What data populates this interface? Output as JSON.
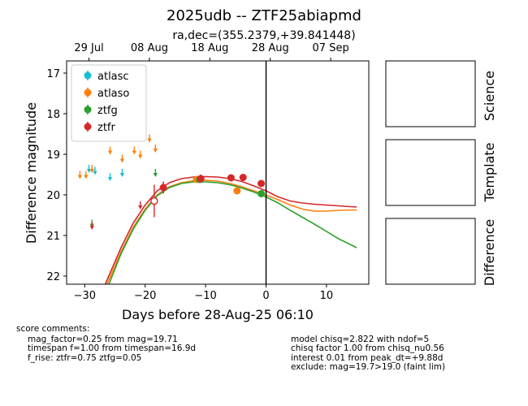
{
  "title": "2025udb -- ZTF25abiapmd",
  "subtitle": "ra,dec=(355.2379,+39.841448)",
  "chart_data": {
    "type": "scatter",
    "xlabel": "Days before 28-Aug-25 06:10",
    "ylabel": "Difference magnitude",
    "xlim": [
      -33,
      17
    ],
    "ylim": [
      22.2,
      16.7
    ],
    "y_inverted": true,
    "xticks": [
      -30,
      -20,
      -10,
      0,
      10
    ],
    "yticks": [
      17,
      18,
      19,
      20,
      21,
      22
    ],
    "top_axis_ticks": [
      {
        "label": "29 Jul",
        "x": -29.3
      },
      {
        "label": "08 Aug",
        "x": -19.3
      },
      {
        "label": "18 Aug",
        "x": -9.3
      },
      {
        "label": "28 Aug",
        "x": 0.7
      },
      {
        "label": "07 Sep",
        "x": 10.7
      }
    ],
    "vline_x": 0,
    "legend_position": "top-left",
    "series": [
      {
        "name": "atlasc",
        "color": "#17becf",
        "detections": [],
        "upper_limits": [
          {
            "x": -29.3,
            "y": 19.3
          },
          {
            "x": -28.3,
            "y": 19.35
          },
          {
            "x": -25.8,
            "y": 19.5
          },
          {
            "x": -23.8,
            "y": 19.4
          }
        ]
      },
      {
        "name": "atlaso",
        "color": "#ff7f0e",
        "detections": [
          {
            "x": -11.5,
            "y": 19.62,
            "err": 0.06
          },
          {
            "x": -4.8,
            "y": 19.9,
            "err": 0.08
          }
        ],
        "upper_limits": [
          {
            "x": -30.8,
            "y": 19.45
          },
          {
            "x": -29.8,
            "y": 19.45
          },
          {
            "x": -28.8,
            "y": 19.3
          },
          {
            "x": -25.8,
            "y": 18.85
          },
          {
            "x": -23.8,
            "y": 19.05
          },
          {
            "x": -21.8,
            "y": 18.85
          },
          {
            "x": -20.8,
            "y": 18.95
          },
          {
            "x": -19.3,
            "y": 18.55
          },
          {
            "x": -18.3,
            "y": 18.8
          }
        ]
      },
      {
        "name": "ztfg",
        "color": "#2ca02c",
        "detections": [
          {
            "x": -11.0,
            "y": 19.62,
            "err": 0.06
          },
          {
            "x": -0.8,
            "y": 19.97,
            "err": 0.08
          }
        ],
        "upper_limits": [
          {
            "x": -28.8,
            "y": 20.65
          },
          {
            "x": -18.3,
            "y": 19.4
          }
        ]
      },
      {
        "name": "ztfr",
        "color": "#d62728",
        "detections": [
          {
            "x": -17.0,
            "y": 19.82,
            "err": 0.15
          },
          {
            "x": -10.8,
            "y": 19.6,
            "err": 0.1
          },
          {
            "x": -5.8,
            "y": 19.58,
            "err": 0.06
          },
          {
            "x": -3.8,
            "y": 19.57,
            "err": 0.06
          },
          {
            "x": -0.8,
            "y": 19.72,
            "err": 0.08
          }
        ],
        "marginal": [
          {
            "x": -18.5,
            "y": 20.15,
            "err": 0.4
          }
        ],
        "upper_limits": [
          {
            "x": -28.8,
            "y": 20.7
          },
          {
            "x": -20.8,
            "y": 20.2
          }
        ]
      }
    ],
    "models": [
      {
        "name": "atlaso",
        "color": "#ff7f0e",
        "points": [
          [
            -26.3,
            22.2
          ],
          [
            -24,
            21.4
          ],
          [
            -22,
            20.8
          ],
          [
            -20,
            20.35
          ],
          [
            -18,
            20.0
          ],
          [
            -16,
            19.8
          ],
          [
            -14,
            19.7
          ],
          [
            -12,
            19.65
          ],
          [
            -10,
            19.64
          ],
          [
            -8,
            19.66
          ],
          [
            -6,
            19.72
          ],
          [
            -4,
            19.8
          ],
          [
            -2,
            19.9
          ],
          [
            0,
            20.0
          ],
          [
            2,
            20.12
          ],
          [
            4,
            20.25
          ],
          [
            6,
            20.35
          ],
          [
            8,
            20.4
          ],
          [
            10,
            20.4
          ],
          [
            12,
            20.38
          ],
          [
            15,
            20.37
          ]
        ]
      },
      {
        "name": "ztfg",
        "color": "#2ca02c",
        "points": [
          [
            -26.0,
            22.2
          ],
          [
            -24,
            21.45
          ],
          [
            -22,
            20.85
          ],
          [
            -20,
            20.38
          ],
          [
            -18,
            20.02
          ],
          [
            -16,
            19.82
          ],
          [
            -14,
            19.72
          ],
          [
            -12,
            19.68
          ],
          [
            -10,
            19.68
          ],
          [
            -8,
            19.7
          ],
          [
            -6,
            19.75
          ],
          [
            -4,
            19.83
          ],
          [
            -2,
            19.93
          ],
          [
            0,
            20.05
          ],
          [
            2,
            20.2
          ],
          [
            4,
            20.38
          ],
          [
            6,
            20.55
          ],
          [
            8,
            20.72
          ],
          [
            10,
            20.9
          ],
          [
            12,
            21.08
          ],
          [
            15,
            21.3
          ]
        ]
      },
      {
        "name": "ztfr",
        "color": "#d62728",
        "points": [
          [
            -26.6,
            22.2
          ],
          [
            -24,
            21.3
          ],
          [
            -22,
            20.7
          ],
          [
            -20,
            20.25
          ],
          [
            -18,
            19.9
          ],
          [
            -16,
            19.7
          ],
          [
            -14,
            19.6
          ],
          [
            -12,
            19.56
          ],
          [
            -10,
            19.55
          ],
          [
            -8,
            19.56
          ],
          [
            -6,
            19.6
          ],
          [
            -4,
            19.67
          ],
          [
            -2,
            19.78
          ],
          [
            0,
            19.9
          ],
          [
            2,
            20.05
          ],
          [
            4,
            20.15
          ],
          [
            6,
            20.2
          ],
          [
            8,
            20.23
          ],
          [
            10,
            20.25
          ],
          [
            12,
            20.27
          ],
          [
            15,
            20.3
          ]
        ]
      }
    ]
  },
  "side_panels": [
    "Science",
    "Template",
    "Difference"
  ],
  "comments_left": [
    "score comments:",
    "mag_factor=0.25 from mag=19.71",
    "timespan f=1.00 from timespan=16.9d",
    "f_rise: ztfr=0.75 ztfg=0.05"
  ],
  "comments_right": [
    "model chisq=2.822 with ndof=5",
    "chisq factor 1.00 from chisq_nu0.56",
    "interest 0.01 from peak_dt=+9.88d",
    "exclude: mag=19.7>19.0 (faint lim)"
  ]
}
